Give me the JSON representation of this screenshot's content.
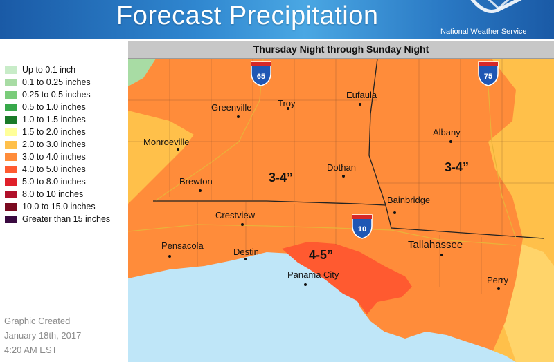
{
  "header": {
    "title": "Forecast Precipitation",
    "agency": "National Weather Service"
  },
  "subtitle": "Thursday Night through Sunday Night",
  "legend": [
    {
      "label": "Up to 0.1 inch",
      "color": "#c8ecc8"
    },
    {
      "label": "0.1 to 0.25 inches",
      "color": "#a8dca4"
    },
    {
      "label": "0.25 to 0.5 inches",
      "color": "#7acc7a"
    },
    {
      "label": "0.5 to 1.0 inches",
      "color": "#37a84a"
    },
    {
      "label": "1.0 to 1.5 inches",
      "color": "#1a7a28"
    },
    {
      "label": "1.5 to 2.0 inches",
      "color": "#ffff99"
    },
    {
      "label": "2.0 to 3.0 inches",
      "color": "#ffc04a"
    },
    {
      "label": "3.0 to 4.0 inches",
      "color": "#ff8c3a"
    },
    {
      "label": "4.0 to 5.0 inches",
      "color": "#ff5a30"
    },
    {
      "label": "5.0 to 8.0 inches",
      "color": "#e0202a"
    },
    {
      "label": "8.0 to 10 inches",
      "color": "#b0102a"
    },
    {
      "label": "10.0 to 15.0 inches",
      "color": "#7a0a20"
    },
    {
      "label": "Greater than 15 inches",
      "color": "#3a0a40"
    }
  ],
  "footer": {
    "line1": "Graphic Created",
    "line2": "January 18th, 2017",
    "line3": "4:20 AM EST"
  },
  "cities": {
    "greenville": "Greenville",
    "troy": "Troy",
    "eufaula": "Eufaula",
    "monroeville": "Monroeville",
    "albany": "Albany",
    "brewton": "Brewton",
    "dothan": "Dothan",
    "bainbridge": "Bainbridge",
    "crestview": "Crestview",
    "tallahassee": "Tallahassee",
    "pensacola": "Pensacola",
    "destin": "Destin",
    "panama_city": "Panama City",
    "perry": "Perry"
  },
  "annotations": {
    "west": "3-4”",
    "east": "3-4”",
    "coast": "4-5”"
  },
  "highways": {
    "i65": "65",
    "i75": "75",
    "i10": "10",
    "shield_word": "INTERSTATE"
  },
  "colors": {
    "header_blue": "#2f86cf",
    "gulf": "#bfe6f8",
    "rain_2_3": "#ffc04a",
    "rain_3_4": "#ff8c3a",
    "rain_4_5": "#ff5a30",
    "rain_1_1_5_edge": "#a8dca4",
    "rain_1_5_2": "#ffff99"
  }
}
